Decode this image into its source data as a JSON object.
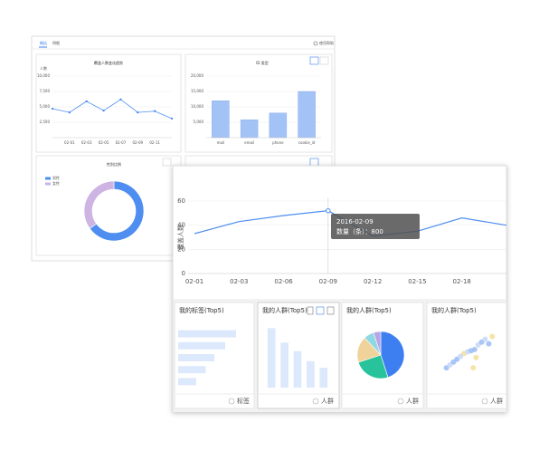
{
  "app": {
    "tabs": [
      "概括",
      "明细"
    ],
    "help": "使用帮助"
  },
  "cards": [
    {
      "title": "我的标签(Top5)",
      "footer": "标签"
    },
    {
      "title": "我的人群(Top5)",
      "footer": "人群"
    },
    {
      "title": "我的人群(Top5)",
      "footer": "人群"
    },
    {
      "title": "我的人群(Top5)",
      "footer": "人群"
    }
  ],
  "tooltip": {
    "title": "2016-02-09",
    "text": "数量（条）：800"
  },
  "chart_data": [
    {
      "type": "line",
      "title": "覆盖人数变化趋势",
      "ylabel": "人数",
      "color": "#4e8ef0",
      "grid": true,
      "categories": [
        null,
        "02-01",
        "02-03",
        "02-05",
        "02-07",
        "02-09",
        "02-11",
        null
      ],
      "values": [
        4700,
        4100,
        5900,
        4400,
        6200,
        4100,
        4300,
        3100
      ],
      "ylim": [
        0,
        10000
      ],
      "yticks": [
        {
          "value": 2500,
          "label": "2,500"
        },
        {
          "value": 5000,
          "label": "5,000"
        },
        {
          "value": 7500,
          "label": "7,500"
        },
        {
          "value": 10000,
          "label": "10,000"
        }
      ]
    },
    {
      "type": "bar",
      "title": "ID 类型",
      "color": "#a3c2f5",
      "grid": true,
      "categories": [
        "mail",
        "email",
        "phone",
        "cookie_id"
      ],
      "values": [
        12000,
        5800,
        8000,
        15000
      ],
      "ylim": [
        0,
        20000
      ],
      "yticks": [
        {
          "value": 5000,
          "label": "5,000"
        },
        {
          "value": 10000,
          "label": "10,000"
        },
        {
          "value": 15000,
          "label": "15,000"
        },
        {
          "value": 20000,
          "label": "20,000"
        }
      ]
    },
    {
      "type": "donut",
      "title": "性别比例",
      "series": [
        {
          "name": "男性",
          "color": "#4e8ef0",
          "value": 65
        },
        {
          "name": "女性",
          "color": "#cdb4e3",
          "value": 35
        }
      ]
    },
    {
      "type": "line",
      "ylabel": "覆盖人数",
      "color": "#4e8ef0",
      "grid": true,
      "categories": [
        "02-01",
        "02-03",
        "02-06",
        "02-09",
        "02-12",
        "02-15",
        "02-18",
        null
      ],
      "values": [
        33,
        43,
        48,
        52,
        31,
        35,
        46,
        40
      ],
      "ylim": [
        0,
        60
      ],
      "yticks": [
        0,
        20,
        40,
        60
      ]
    },
    {
      "type": "barh",
      "color": "#dce8fb",
      "values": [
        80,
        65,
        50,
        38,
        25
      ],
      "xlim": [
        0,
        100
      ]
    },
    {
      "type": "bar",
      "color": "#dce8fb",
      "values": [
        90,
        68,
        55,
        40,
        30
      ],
      "ylim": [
        0,
        100
      ]
    },
    {
      "type": "pie",
      "series": [
        {
          "color": "#3d7ff0",
          "value": 45
        },
        {
          "color": "#28c39a",
          "value": 25
        },
        {
          "color": "#f0d39a",
          "value": 18
        },
        {
          "color": "#8fd8e3",
          "value": 7
        },
        {
          "color": "#b8a4e8",
          "value": 5
        }
      ]
    },
    {
      "type": "scatter",
      "xlim": [
        0,
        100
      ],
      "ylim": [
        0,
        100
      ],
      "x": [
        20,
        25,
        30,
        35,
        45,
        50,
        55,
        60,
        65,
        70,
        75,
        80,
        62,
        58,
        85,
        40
      ],
      "values": [
        30,
        35,
        40,
        45,
        55,
        58,
        60,
        62,
        70,
        75,
        80,
        72,
        48,
        30,
        85,
        50
      ],
      "colors": [
        "#9fc0f5",
        "#c9d9f7",
        "#9fc0f5",
        "#9fc0f5",
        "#f5e0a0",
        "#c9d9f7",
        "#9fc0f5",
        "#9fc0f5",
        "#c9d9f7",
        "#9fc0f5",
        "#c9d9f7",
        "#9fc0f5",
        "#f5e0a0",
        "#f5e0a0",
        "#f5e0a0",
        "#c9d9f7"
      ]
    }
  ]
}
